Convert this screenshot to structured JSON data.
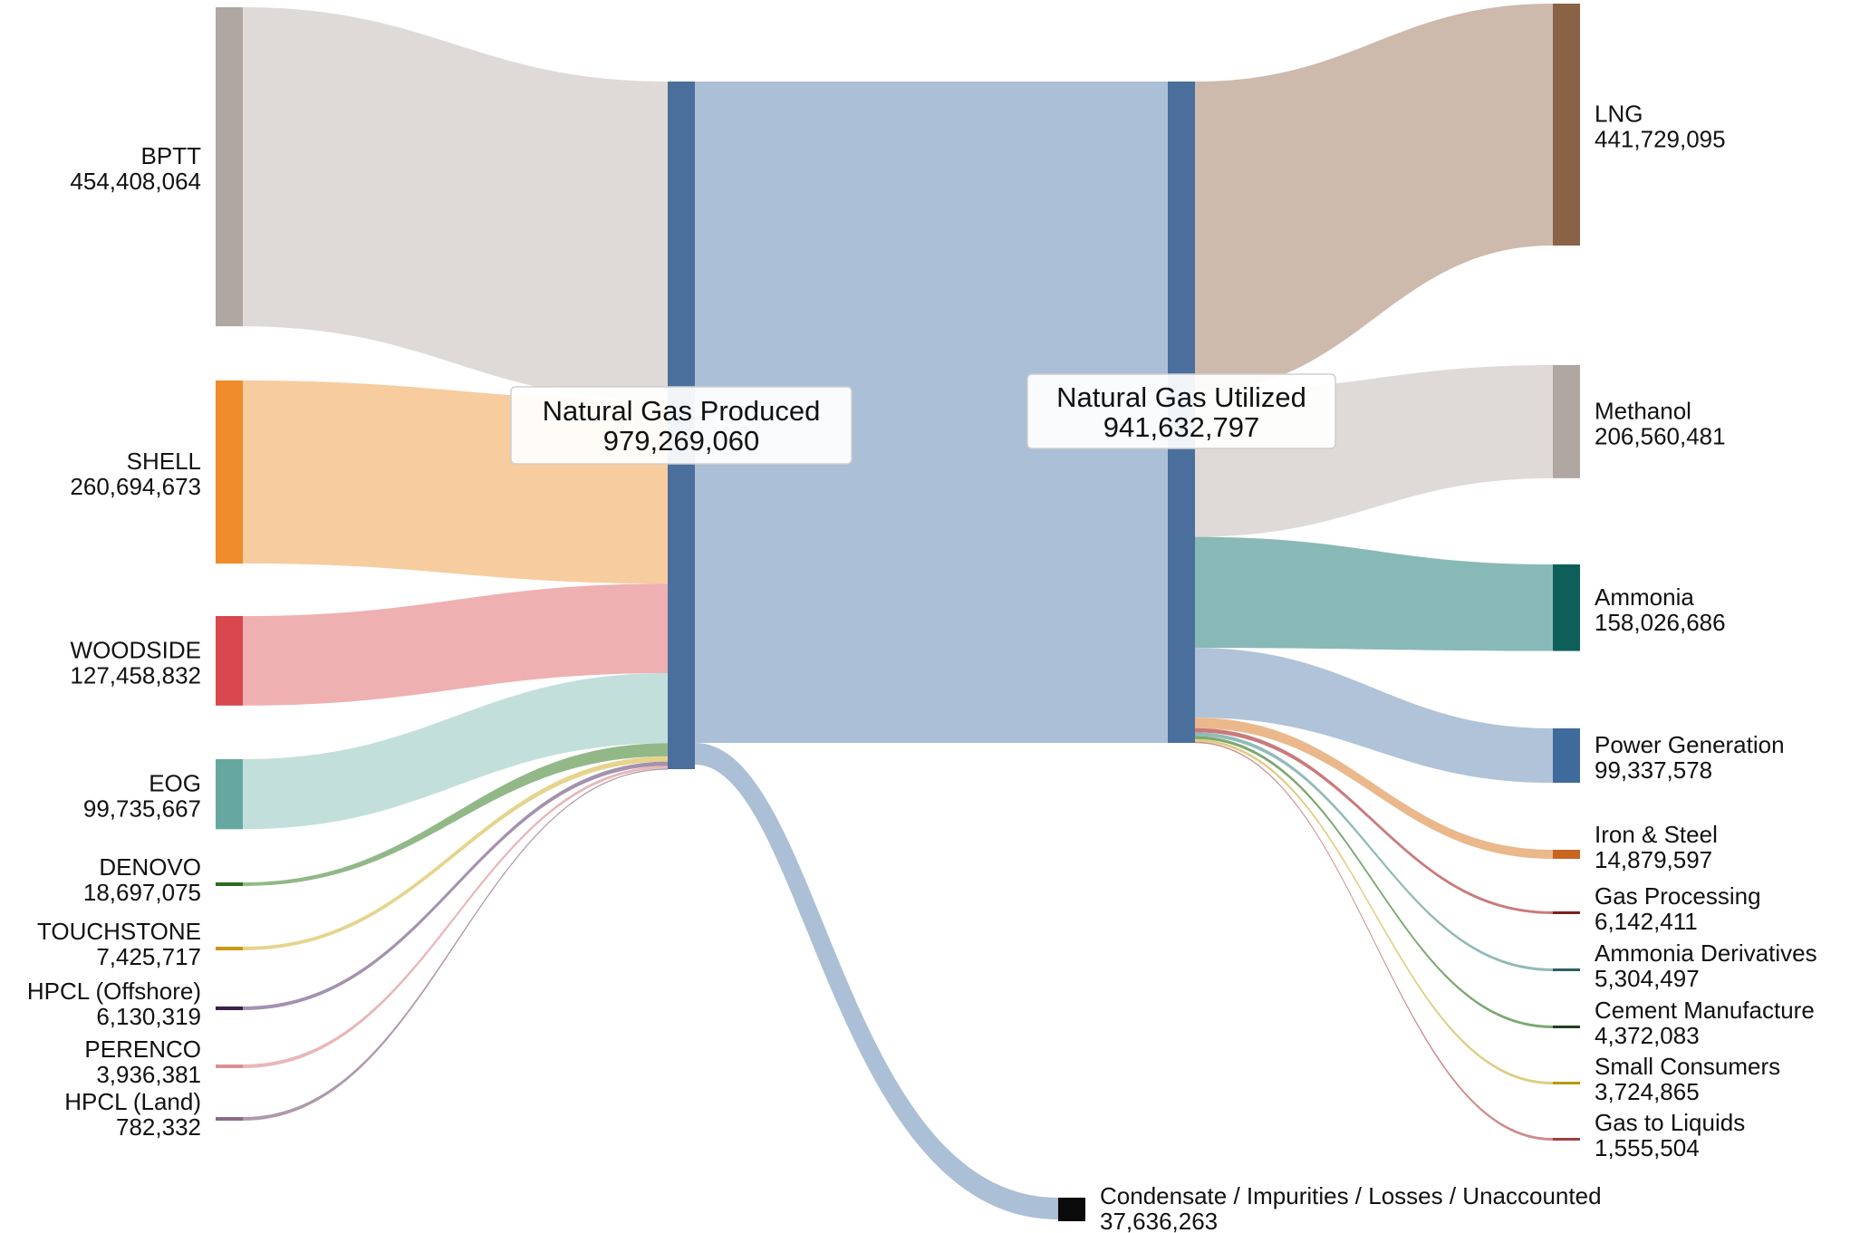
{
  "chart_data": {
    "type": "sankey",
    "units": "",
    "colors": {
      "hub": "#4a6f9c",
      "hub_link": "#a7bcd4",
      "loss_node": "#0a0a0a"
    },
    "hubs": [
      {
        "name": "Natural Gas Produced",
        "value_label": "979,269,060",
        "value": 979269060
      },
      {
        "name": "Natural Gas Utilized",
        "value_label": "941,632,797",
        "value": 941632797
      }
    ],
    "sources": [
      {
        "name": "BPTT",
        "value_label": "454,408,064",
        "value": 454408064,
        "node_color": "#b0a6a2",
        "link_color": "#dcd6d3"
      },
      {
        "name": "SHELL",
        "value_label": "260,694,673",
        "value": 260694673,
        "node_color": "#ef8c2b",
        "link_color": "#f6c795"
      },
      {
        "name": "WOODSIDE",
        "value_label": "127,458,832",
        "value": 127458832,
        "node_color": "#d8474e",
        "link_color": "#eda7aa"
      },
      {
        "name": "EOG",
        "value_label": "99,735,667",
        "value": 99735667,
        "node_color": "#66a8a0",
        "link_color": "#bcdbd8"
      },
      {
        "name": "DENOVO",
        "value_label": "18,697,075",
        "value": 18697075,
        "node_color": "#2c6b1f",
        "link_color": "#86b07a"
      },
      {
        "name": "TOUCHSTONE",
        "value_label": "7,425,717",
        "value": 7425717,
        "node_color": "#c79a14",
        "link_color": "#e3cf7f"
      },
      {
        "name": "HPCL (Offshore)",
        "value_label": "6,130,319",
        "value": 6130319,
        "node_color": "#3a2048",
        "link_color": "#9a86a6"
      },
      {
        "name": "PERENCO",
        "value_label": "3,936,381",
        "value": 3936381,
        "node_color": "#d98f93",
        "link_color": "#e5aeb1"
      },
      {
        "name": "HPCL (Land)",
        "value_label": "782,332",
        "value": 782332,
        "node_color": "#8a6a86",
        "link_color": "#a58ea2"
      }
    ],
    "targets": [
      {
        "name": "LNG",
        "value_label": "441,729,095",
        "value": 441729095,
        "node_color": "#8a6347",
        "link_color": "#c9b1a4"
      },
      {
        "name": "Methanol",
        "value_label": "206,560,481",
        "value": 206560481,
        "node_color": "#b0a6a2",
        "link_color": "#dcd6d3"
      },
      {
        "name": "Ammonia",
        "value_label": "158,026,686",
        "value": 158026686,
        "node_color": "#0e5e5a",
        "link_color": "#7cb1af"
      },
      {
        "name": "Power Generation",
        "value_label": "99,337,578",
        "value": 99337578,
        "node_color": "#3e6a9c",
        "link_color": "#a7bcd4"
      },
      {
        "name": "Iron & Steel",
        "value_label": "14,879,597",
        "value": 14879597,
        "node_color": "#c8651f",
        "link_color": "#e8b07e"
      },
      {
        "name": "Gas Processing",
        "value_label": "6,142,411",
        "value": 6142411,
        "node_color": "#7a1f1f",
        "link_color": "#c46c6c"
      },
      {
        "name": "Ammonia Derivatives",
        "value_label": "5,304,497",
        "value": 5304497,
        "node_color": "#2f5f5f",
        "link_color": "#86b3b0"
      },
      {
        "name": "Cement Manufacture",
        "value_label": "4,372,083",
        "value": 4372083,
        "node_color": "#1f3f1f",
        "link_color": "#6e9e62"
      },
      {
        "name": "Small Consumers",
        "value_label": "3,724,865",
        "value": 3724865,
        "node_color": "#b59a10",
        "link_color": "#d9c874"
      },
      {
        "name": "Gas to Liquids",
        "value_label": "1,555,504",
        "value": 1555504,
        "node_color": "#a04040",
        "link_color": "#c97d7d"
      }
    ],
    "loss": {
      "name": "Condensate / Impurities / Losses / Unaccounted",
      "value_label": "37,636,263",
      "value": 37636263
    }
  }
}
